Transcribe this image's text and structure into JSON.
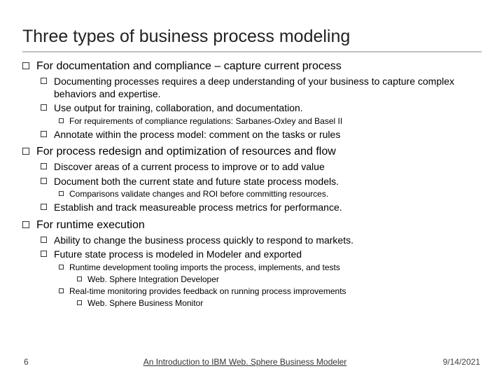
{
  "title": "Three types of business process modeling",
  "section1": {
    "heading": "For documentation and compliance – capture current process",
    "b1": "Documenting processes requires a deep understanding of your business to capture complex behaviors and expertise.",
    "b2": "Use output for training, collaboration, and documentation.",
    "b2a": "For requirements of compliance regulations: Sarbanes-Oxley and Basel II",
    "b3": "Annotate within the process model: comment on the tasks or rules"
  },
  "section2": {
    "heading": "For process redesign and optimization of resources and flow",
    "b1": "Discover areas of a current process to improve or to add value",
    "b2": "Document both the current state and future state process models.",
    "b2a": "Comparisons validate changes and ROI before committing resources.",
    "b3": "Establish and track measureable process metrics for performance."
  },
  "section3": {
    "heading": "For runtime execution",
    "b1": "Ability to change the business process quickly to respond to markets.",
    "b2": "Future state process is modeled in Modeler and exported",
    "b2a": "Runtime development tooling imports the process, implements, and tests",
    "b2a1": "Web. Sphere Integration Developer",
    "b2b": "Real-time monitoring provides feedback on running process improvements",
    "b2b1": "Web. Sphere Business Monitor"
  },
  "footer": {
    "page": "6",
    "title": "An Introduction to IBM Web. Sphere Business Modeler",
    "date": "9/14/2021"
  }
}
